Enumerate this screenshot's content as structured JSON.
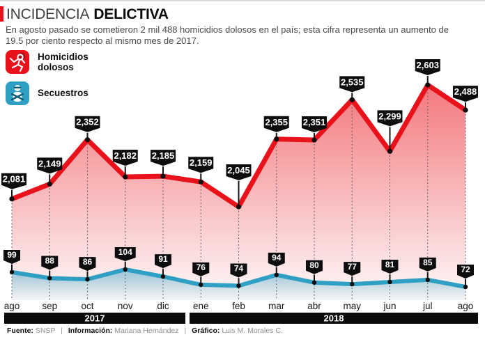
{
  "header": {
    "title_regular": "INCIDENCIA",
    "title_bold": "DELICTIVA",
    "subtitle": "En agosto pasado se cometieron 2 mil 488 homicidios dolosos en el país; esta cifra representa un aumento de 19.5 por ciento respecto al mismo mes de 2017.",
    "accent_color": "#e9111a"
  },
  "legend": {
    "items": [
      {
        "label": "Homicidios dolosos",
        "icon": "homicide-victim-icon",
        "color": "#e9111a"
      },
      {
        "label": "Secuestros",
        "icon": "kidnapping-icon",
        "color": "#2f9fc4"
      }
    ]
  },
  "chart_data": {
    "type": "line",
    "categories": [
      "ago",
      "sep",
      "oct",
      "nov",
      "dic",
      "ene",
      "feb",
      "mar",
      "abr",
      "may",
      "jun",
      "jul",
      "ago"
    ],
    "series": [
      {
        "name": "Homicidios dolosos",
        "color": "#e9111a",
        "values": [
          2081,
          2149,
          2352,
          2182,
          2185,
          2159,
          2045,
          2355,
          2351,
          2535,
          2299,
          2603,
          2488
        ]
      },
      {
        "name": "Secuestros",
        "color": "#2f9fc4",
        "values": [
          99,
          88,
          86,
          104,
          91,
          76,
          74,
          94,
          80,
          77,
          81,
          85,
          72
        ]
      }
    ],
    "year_bands": [
      {
        "label": "2017",
        "from": 0,
        "to": 4
      },
      {
        "label": "2018",
        "from": 5,
        "to": 12
      }
    ],
    "ylim_homicidios": [
      2045,
      2603
    ],
    "ylim_secuestros": [
      72,
      104
    ],
    "grid": "dotted-vertical-guides",
    "legend_position": "top-left",
    "label_style": "black-pointer-tags"
  },
  "footer": {
    "source_label": "Fuente:",
    "source_value": "SNSP",
    "separator": "|",
    "info_label": "Información:",
    "info_value": "Mariana Hernández",
    "credit_label": "Gráfico:",
    "credit_value": "Luis M. Morales C."
  }
}
